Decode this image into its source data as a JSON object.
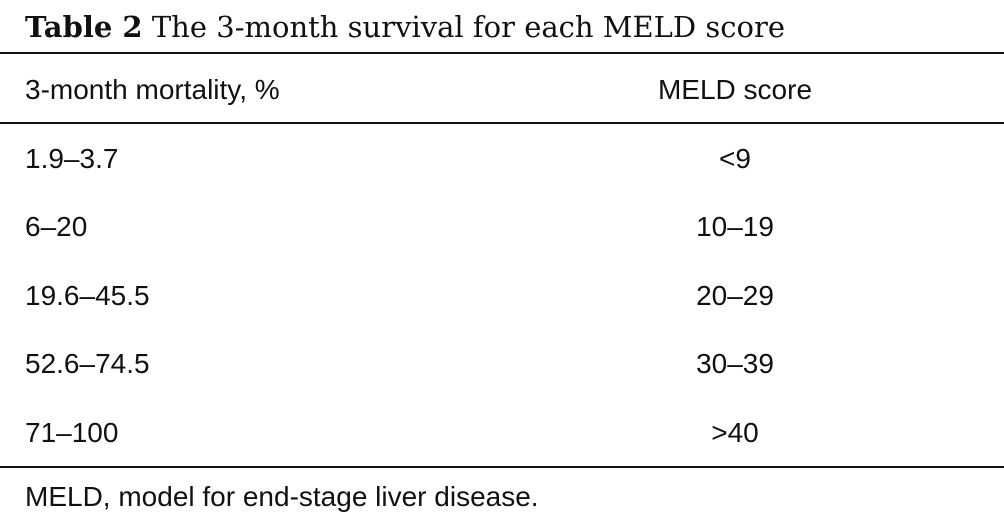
{
  "caption": {
    "label": "Table 2",
    "text": "The 3-month survival for each MELD score"
  },
  "table": {
    "headers": [
      "3-month mortality, %",
      "MELD score"
    ],
    "rows": [
      [
        "1.9–3.7",
        "<9"
      ],
      [
        "6–20",
        "10–19"
      ],
      [
        "19.6–45.5",
        "20–29"
      ],
      [
        "52.6–74.5",
        "30–39"
      ],
      [
        "71–100",
        ">40"
      ]
    ]
  },
  "footnote": "MELD, model for end-stage liver disease."
}
